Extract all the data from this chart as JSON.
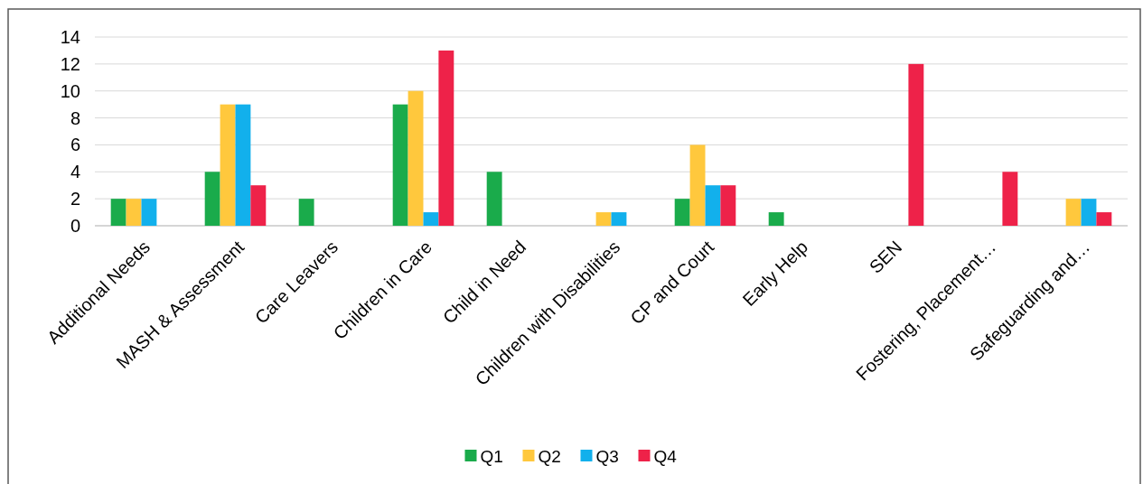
{
  "chart_data": {
    "type": "bar",
    "categories": [
      "Additional Needs",
      "MASH & Assessment",
      "Care Leavers",
      "Children in Care",
      "Child in Need",
      "Children with Disabilities",
      "CP and Court",
      "Early Help",
      "SEN",
      "Fostering, Placement…",
      "Safeguarding and…"
    ],
    "series": [
      {
        "name": "Q1",
        "color": "#1aab4b",
        "values": [
          2,
          4,
          2,
          9,
          4,
          0,
          2,
          1,
          0,
          0,
          0
        ]
      },
      {
        "name": "Q2",
        "color": "#ffc83d",
        "values": [
          2,
          9,
          0,
          10,
          0,
          1,
          6,
          0,
          0,
          0,
          2
        ]
      },
      {
        "name": "Q3",
        "color": "#12b0ec",
        "values": [
          2,
          9,
          0,
          1,
          0,
          1,
          3,
          0,
          0,
          0,
          2
        ]
      },
      {
        "name": "Q4",
        "color": "#ee2249",
        "values": [
          0,
          3,
          0,
          13,
          0,
          0,
          3,
          0,
          12,
          4,
          1
        ]
      }
    ],
    "ylim": [
      0,
      14
    ],
    "yticks": [
      0,
      2,
      4,
      6,
      8,
      10,
      12,
      14
    ],
    "grid": "y",
    "legend": "bottom"
  }
}
